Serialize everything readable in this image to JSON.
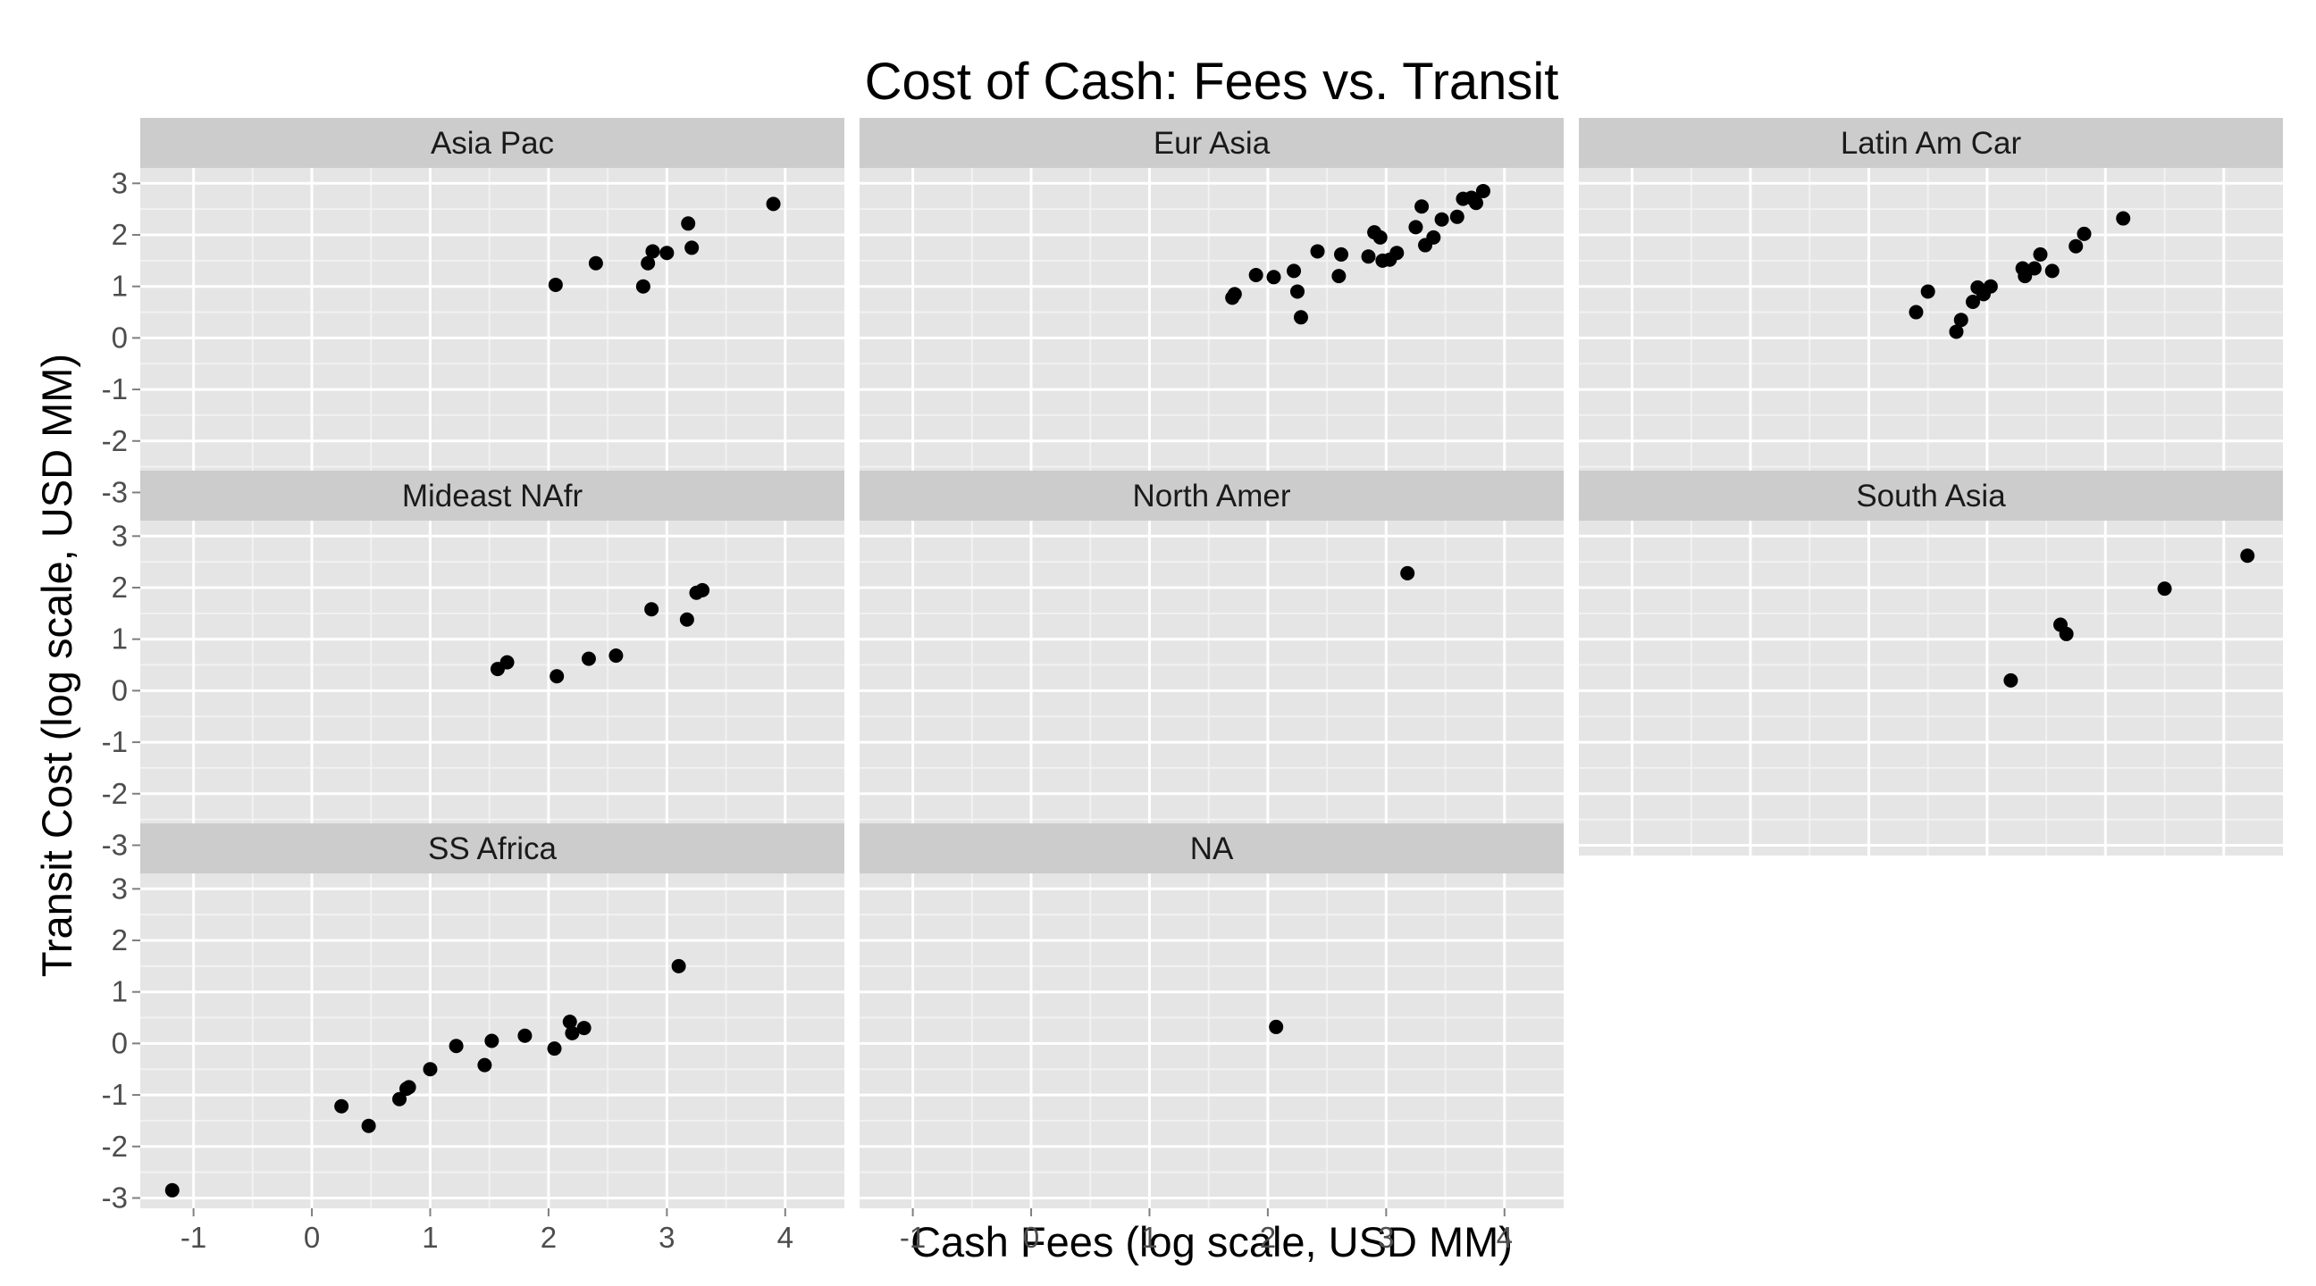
{
  "chart_data": {
    "type": "scatter",
    "title": "Cost of Cash: Fees vs. Transit",
    "xlabel": "Cash Fees (log scale, USD MM)",
    "ylabel": "Transit Cost (log scale, USD MM)",
    "xlim": [
      -1.45,
      4.5
    ],
    "ylim": [
      -3.2,
      3.3
    ],
    "xticks": [
      -1,
      0,
      1,
      2,
      3,
      4
    ],
    "yticks": [
      -3,
      -2,
      -1,
      0,
      1,
      2,
      3
    ],
    "grid": true,
    "facets": [
      {
        "name": "Asia Pac",
        "points": [
          [
            2.06,
            1.03
          ],
          [
            2.4,
            1.45
          ],
          [
            2.8,
            1.0
          ],
          [
            2.84,
            1.45
          ],
          [
            2.88,
            1.68
          ],
          [
            3.0,
            1.65
          ],
          [
            3.18,
            2.22
          ],
          [
            3.21,
            1.75
          ],
          [
            3.9,
            2.6
          ]
        ]
      },
      {
        "name": "Eur Asia",
        "points": [
          [
            1.7,
            0.78
          ],
          [
            1.72,
            0.85
          ],
          [
            1.9,
            1.22
          ],
          [
            2.05,
            1.18
          ],
          [
            2.22,
            1.3
          ],
          [
            2.25,
            0.9
          ],
          [
            2.28,
            0.4
          ],
          [
            2.42,
            1.68
          ],
          [
            2.6,
            1.2
          ],
          [
            2.62,
            1.62
          ],
          [
            2.85,
            1.58
          ],
          [
            2.9,
            2.05
          ],
          [
            2.95,
            1.95
          ],
          [
            2.97,
            1.5
          ],
          [
            3.03,
            1.52
          ],
          [
            3.09,
            1.65
          ],
          [
            3.25,
            2.15
          ],
          [
            3.3,
            2.55
          ],
          [
            3.33,
            1.8
          ],
          [
            3.4,
            1.95
          ],
          [
            3.47,
            2.3
          ],
          [
            3.6,
            2.35
          ],
          [
            3.65,
            2.7
          ],
          [
            3.72,
            2.72
          ],
          [
            3.76,
            2.62
          ],
          [
            3.82,
            2.85
          ]
        ]
      },
      {
        "name": "Latin Am Car",
        "points": [
          [
            1.4,
            0.5
          ],
          [
            1.5,
            0.9
          ],
          [
            1.74,
            0.12
          ],
          [
            1.78,
            0.35
          ],
          [
            1.88,
            0.7
          ],
          [
            1.92,
            0.98
          ],
          [
            1.97,
            0.85
          ],
          [
            2.03,
            1.0
          ],
          [
            2.3,
            1.35
          ],
          [
            2.32,
            1.2
          ],
          [
            2.4,
            1.35
          ],
          [
            2.45,
            1.62
          ],
          [
            2.55,
            1.3
          ],
          [
            2.75,
            1.78
          ],
          [
            2.82,
            2.02
          ],
          [
            3.15,
            2.32
          ]
        ]
      },
      {
        "name": "Mideast NAfr",
        "points": [
          [
            1.57,
            0.42
          ],
          [
            1.65,
            0.55
          ],
          [
            2.07,
            0.28
          ],
          [
            2.34,
            0.62
          ],
          [
            2.57,
            0.68
          ],
          [
            2.87,
            1.58
          ],
          [
            3.17,
            1.38
          ],
          [
            3.25,
            1.9
          ],
          [
            3.3,
            1.95
          ]
        ]
      },
      {
        "name": "North Amer",
        "points": [
          [
            3.18,
            2.28
          ]
        ]
      },
      {
        "name": "South Asia",
        "points": [
          [
            2.2,
            0.2
          ],
          [
            2.62,
            1.28
          ],
          [
            2.67,
            1.1
          ],
          [
            3.5,
            1.98
          ],
          [
            4.2,
            2.62
          ]
        ]
      },
      {
        "name": "SS Africa",
        "points": [
          [
            -1.18,
            -2.85
          ],
          [
            0.25,
            -1.22
          ],
          [
            0.48,
            -1.6
          ],
          [
            0.74,
            -1.08
          ],
          [
            0.8,
            -0.88
          ],
          [
            0.82,
            -0.85
          ],
          [
            1.0,
            -0.5
          ],
          [
            1.22,
            -0.05
          ],
          [
            1.46,
            -0.42
          ],
          [
            1.52,
            0.05
          ],
          [
            1.8,
            0.15
          ],
          [
            2.05,
            -0.1
          ],
          [
            2.18,
            0.42
          ],
          [
            2.2,
            0.2
          ],
          [
            2.3,
            0.3
          ],
          [
            3.1,
            1.5
          ]
        ]
      },
      {
        "name": "NA",
        "points": [
          [
            2.07,
            0.32
          ]
        ]
      }
    ]
  }
}
